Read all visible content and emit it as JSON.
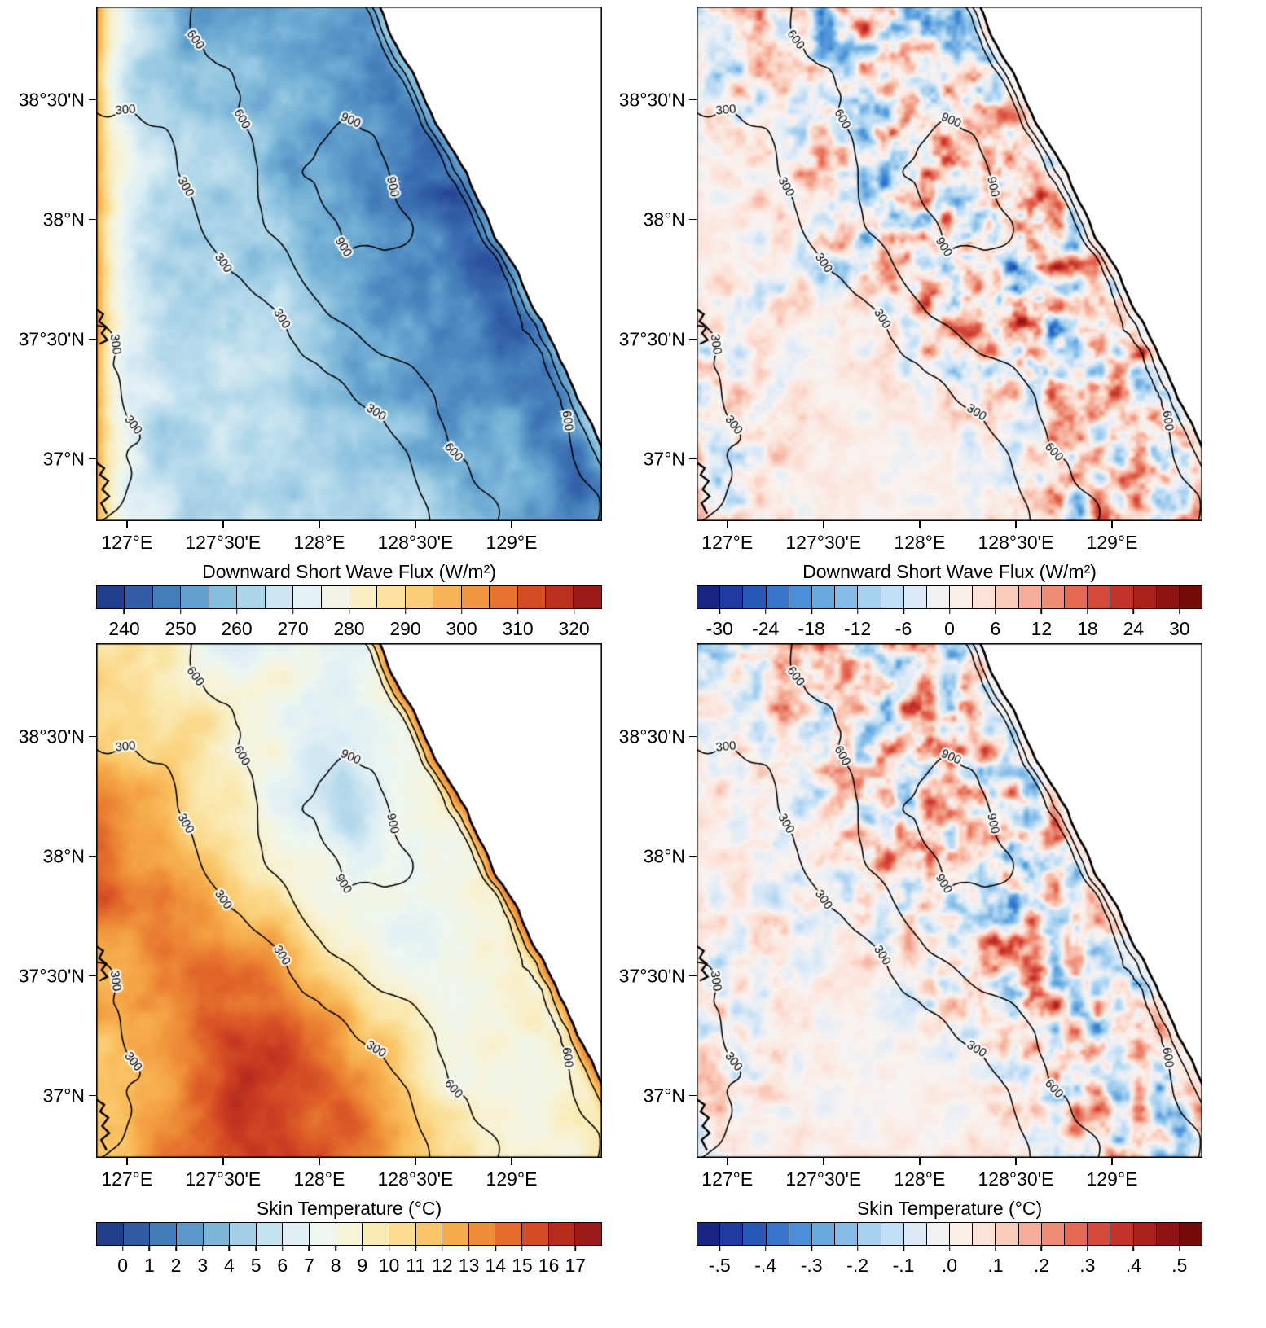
{
  "figure": {
    "background": "#ffffff",
    "frame_color": "#000000",
    "contour_color": "#000000",
    "sea_color": "#ffffff",
    "contour_labels": [
      "300",
      "600",
      "900"
    ]
  },
  "palettes": {
    "blue_yellow_red": [
      "#1c2f80",
      "#2a4d9b",
      "#3a6db1",
      "#528fc4",
      "#74b0d6",
      "#9bcbe4",
      "#bfdfee",
      "#ddeef5",
      "#eef6f0",
      "#f7f3d8",
      "#faeab2",
      "#fbd98b",
      "#fac263",
      "#f5a647",
      "#ec8434",
      "#df5f28",
      "#cc3d22",
      "#ad221c",
      "#871414"
    ],
    "blue_white_red": [
      "#141a6e",
      "#1f3aa0",
      "#2a5fc0",
      "#3f86d4",
      "#67a9e0",
      "#93c6ec",
      "#bcdcf4",
      "#dfecf8",
      "#f9f3f1",
      "#fce4da",
      "#f9c4b2",
      "#f29a83",
      "#e56a55",
      "#d13f33",
      "#b2231d",
      "#8c1212",
      "#660808"
    ]
  },
  "chart_data": [
    {
      "type": "heatmap",
      "position": "top-left",
      "title": "Downward Short Wave Flux  (W/m²)",
      "field_kind": "dswf_full",
      "xlim": [
        126.84,
        129.47
      ],
      "ylim": [
        36.74,
        38.89
      ],
      "x_tick_values": [
        127,
        127.5,
        128,
        128.5,
        129
      ],
      "x_tick_labels": [
        "127°E",
        "127°30'E",
        "128°E",
        "128°30'E",
        "129°E"
      ],
      "y_tick_values": [
        38.5,
        38.0,
        37.5,
        37.0
      ],
      "y_tick_labels": [
        "38°30'N",
        "38°N",
        "37°30'N",
        "37°N"
      ],
      "colorbar": {
        "min": 235,
        "max": 325,
        "step": 5,
        "palette": "blue_yellow_red",
        "tick_values": [
          240,
          250,
          260,
          270,
          280,
          290,
          300,
          310,
          320
        ],
        "tick_labels": [
          "240",
          "250",
          "260",
          "270",
          "280",
          "290",
          "300",
          "310",
          "320"
        ]
      },
      "contour_levels": [
        300,
        600,
        900
      ],
      "notes": "295-305 W/m2 (orange) along west edge; 255-275 (blue) over interior; 245-260 (darker blue) along east-coast mountains; sea in upper right blank; terrain contours 300/600/900 m overlaid"
    },
    {
      "type": "heatmap",
      "position": "top-right",
      "title": "Downward Short Wave Flux  (W/m²)",
      "field_kind": "dswf_diff",
      "xlim": [
        126.84,
        129.47
      ],
      "ylim": [
        36.74,
        38.89
      ],
      "x_tick_values": [
        127,
        127.5,
        128,
        128.5,
        129
      ],
      "x_tick_labels": [
        "127°E",
        "127°30'E",
        "128°E",
        "128°30'E",
        "129°E"
      ],
      "y_tick_values": [
        38.5,
        38.0,
        37.5,
        37.0
      ],
      "y_tick_labels": [
        "38°30'N",
        "38°N",
        "37°30'N",
        "37°N"
      ],
      "colorbar": {
        "min": -33,
        "max": 33,
        "step": 3,
        "palette": "blue_white_red",
        "tick_values": [
          -30,
          -24,
          -18,
          -12,
          -6,
          0,
          6,
          12,
          18,
          24,
          30
        ],
        "tick_labels": [
          "-30",
          "-24",
          "-18",
          "-12",
          "-6",
          "0",
          "6",
          "12",
          "18",
          "24",
          "30"
        ]
      },
      "contour_levels": [
        300,
        600,
        900
      ],
      "notes": "difference field near 0 (white/pale pink) over lowlands with ±10-30 W/m2 blue/red speckle concentrated over the coastal mountains"
    },
    {
      "type": "heatmap",
      "position": "bottom-left",
      "title": "Skin Temperature  (°C)",
      "field_kind": "skin_full",
      "xlim": [
        126.84,
        129.47
      ],
      "ylim": [
        36.74,
        38.89
      ],
      "x_tick_values": [
        127,
        127.5,
        128,
        128.5,
        129
      ],
      "x_tick_labels": [
        "127°E",
        "127°30'E",
        "128°E",
        "128°30'E",
        "129°E"
      ],
      "y_tick_values": [
        38.5,
        38.0,
        37.5,
        37.0
      ],
      "y_tick_labels": [
        "38°30'N",
        "38°N",
        "37°30'N",
        "37°N"
      ],
      "colorbar": {
        "min": -1,
        "max": 18,
        "step": 1,
        "palette": "blue_yellow_red",
        "tick_values": [
          0,
          1,
          2,
          3,
          4,
          5,
          6,
          7,
          8,
          9,
          10,
          11,
          12,
          13,
          14,
          15,
          16,
          17
        ],
        "tick_labels": [
          "0",
          "1",
          "2",
          "3",
          "4",
          "5",
          "6",
          "7",
          "8",
          "9",
          "10",
          "11",
          "12",
          "13",
          "14",
          "15",
          "16",
          "17"
        ]
      },
      "contour_levels": [
        300,
        600,
        900
      ],
      "notes": "11-16 °C (orange/red) over western lowlands, darkest red west-center; 3-8 °C (blue) patches over high terrain along east coast; terrain contours overlaid"
    },
    {
      "type": "heatmap",
      "position": "bottom-right",
      "title": "Skin Temperature  (°C)",
      "field_kind": "skin_diff",
      "xlim": [
        126.84,
        129.47
      ],
      "ylim": [
        36.74,
        38.89
      ],
      "x_tick_values": [
        127,
        127.5,
        128,
        128.5,
        129
      ],
      "x_tick_labels": [
        "127°E",
        "127°30'E",
        "128°E",
        "128°30'E",
        "129°E"
      ],
      "y_tick_values": [
        38.5,
        38.0,
        37.5,
        37.0
      ],
      "y_tick_labels": [
        "38°30'N",
        "38°N",
        "37°30'N",
        "37°N"
      ],
      "colorbar": {
        "min": -0.55,
        "max": 0.55,
        "step": 0.05,
        "palette": "blue_white_red",
        "tick_values": [
          -0.5,
          -0.4,
          -0.3,
          -0.2,
          -0.1,
          0,
          0.1,
          0.2,
          0.3,
          0.4,
          0.5
        ],
        "tick_labels": [
          "-.5",
          "-.4",
          "-.3",
          "-.2",
          "-.1",
          ".0",
          ".1",
          ".2",
          ".3",
          ".4",
          ".5"
        ]
      },
      "contour_levels": [
        300,
        600,
        900
      ],
      "notes": "difference field near 0 with ±0.1-0.5 °C blue/red speckle over the coastal mountains, mostly blue streaks along ridges"
    }
  ]
}
